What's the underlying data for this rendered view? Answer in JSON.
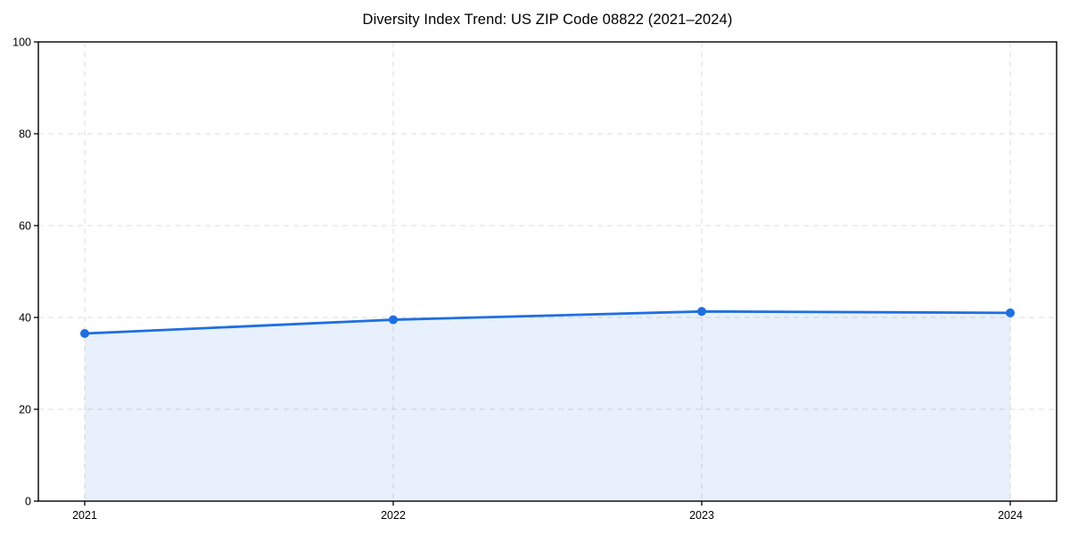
{
  "figure": {
    "background": "#ffffff"
  },
  "chart_data": {
    "type": "area",
    "title": "Diversity Index Trend: US ZIP Code 08822 (2021–2024)",
    "categories": [
      "2021",
      "2022",
      "2023",
      "2024"
    ],
    "series": [
      {
        "name": "Diversity Index",
        "values": [
          36.5,
          39.5,
          41.3,
          41.0
        ]
      }
    ],
    "xlabel": "",
    "ylabel": "",
    "ylim": [
      0,
      100
    ],
    "yticks": [
      0,
      20,
      40,
      60,
      80,
      100
    ],
    "grid": true,
    "grid_style": "dashed",
    "legend": "none",
    "marker": "circle",
    "colors": {
      "line": "#1f6fe0",
      "marker": "#1f6fe0",
      "fill": "rgba(31, 111, 224, 0.10)",
      "grid": "#dcdcdc",
      "axis": "#000000",
      "text": "#000000"
    }
  }
}
